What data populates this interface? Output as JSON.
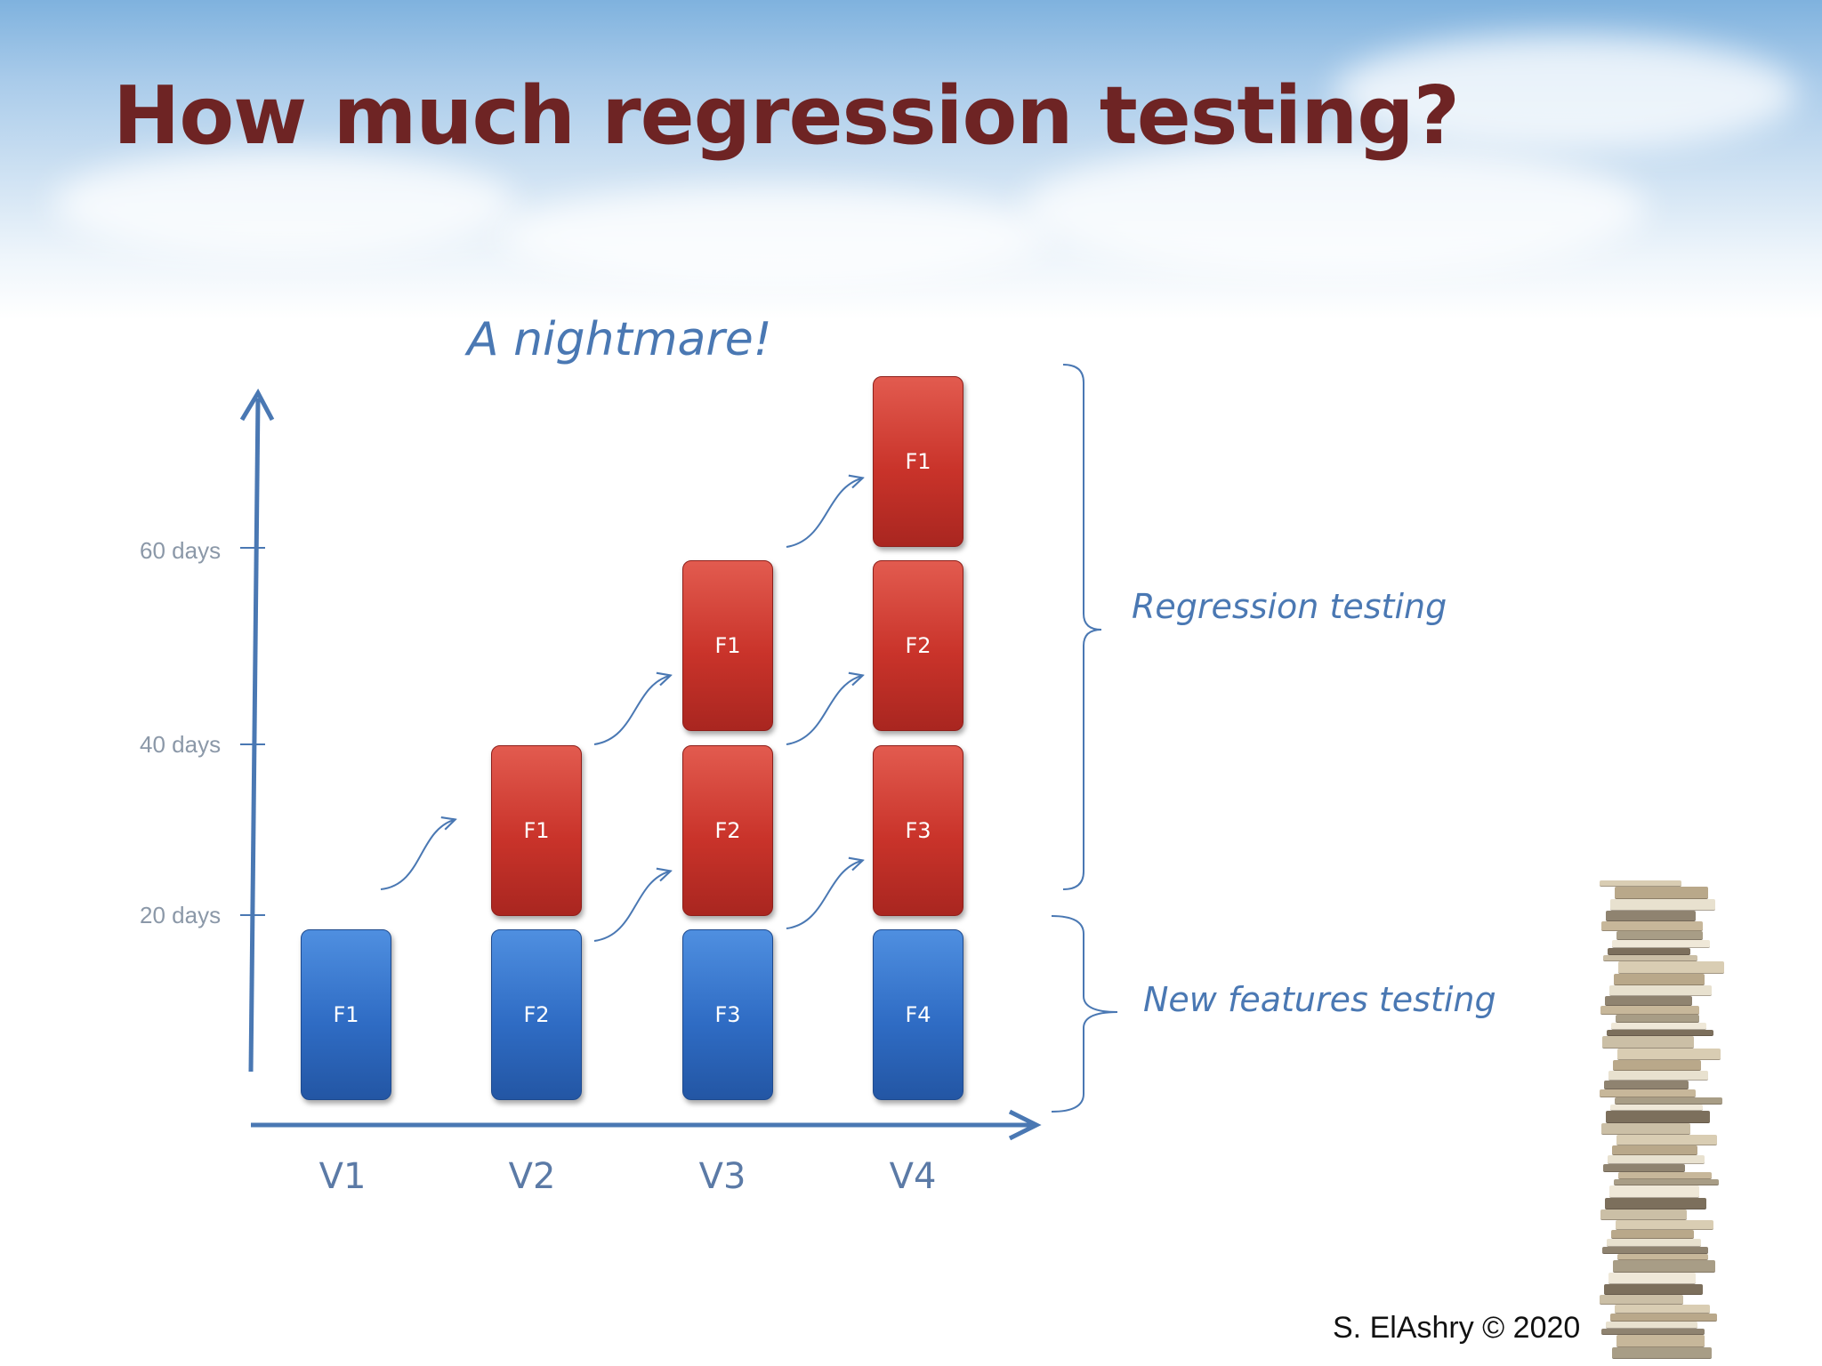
{
  "slide": {
    "title": "How much regression testing?",
    "subtitle": "A nightmare!",
    "copyright": "S. ElAshry © 2020"
  },
  "diagram": {
    "y_axis_ticks": [
      "20 days",
      "40 days",
      "60 days"
    ],
    "versions": [
      "V1",
      "V2",
      "V3",
      "V4"
    ],
    "columns": [
      {
        "version": "V1",
        "new_feature": "F1",
        "regression": []
      },
      {
        "version": "V2",
        "new_feature": "F2",
        "regression": [
          "F1"
        ]
      },
      {
        "version": "V3",
        "new_feature": "F3",
        "regression": [
          "F2",
          "F1"
        ]
      },
      {
        "version": "V4",
        "new_feature": "F4",
        "regression": [
          "F3",
          "F2",
          "F1"
        ]
      }
    ],
    "brackets": {
      "regression_label": "Regression testing",
      "new_features_label": "New features testing"
    },
    "colors": {
      "regression_box": "#c9332a",
      "new_feature_box": "#2f6cc4",
      "axis": "#4a78b3",
      "title": "#6e2424"
    }
  },
  "decoration": {
    "image": "book-stack"
  }
}
